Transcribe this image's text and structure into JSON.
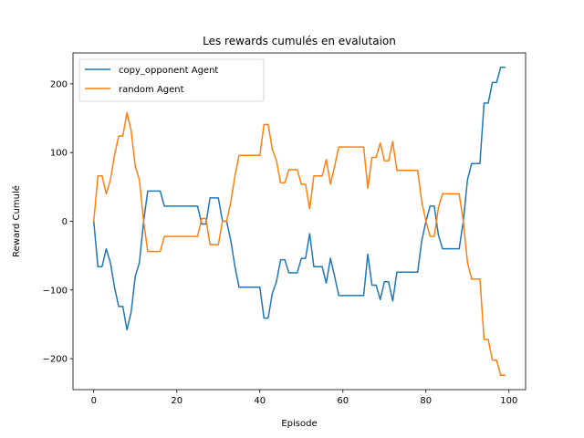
{
  "chart_data": {
    "type": "line",
    "title": "Les rewards cumulés en evalutaion",
    "xlabel": "Episode",
    "ylabel": "Reward Cumulé",
    "xlim": [
      -5,
      104
    ],
    "ylim": [
      -245,
      245
    ],
    "xticks": [
      0,
      20,
      40,
      60,
      80,
      100
    ],
    "yticks": [
      -200,
      -100,
      0,
      100,
      200
    ],
    "ytick_labels": [
      "−200",
      "−100",
      "0",
      "100",
      "200"
    ],
    "grid": false,
    "legend_position": "upper-left",
    "colors": {
      "copy": "#1f77b4",
      "random": "#ff7f0e"
    },
    "series": [
      {
        "name": "copy_opponent Agent",
        "x": [
          0,
          1,
          2,
          3,
          4,
          5,
          6,
          7,
          8,
          9,
          10,
          11,
          12,
          13,
          14,
          15,
          16,
          17,
          18,
          19,
          20,
          21,
          22,
          23,
          24,
          25,
          26,
          27,
          28,
          29,
          30,
          31,
          32,
          33,
          34,
          35,
          36,
          37,
          38,
          39,
          40,
          41,
          42,
          43,
          44,
          45,
          46,
          47,
          48,
          49,
          50,
          51,
          52,
          53,
          54,
          55,
          56,
          57,
          58,
          59,
          60,
          61,
          62,
          63,
          64,
          65,
          66,
          67,
          68,
          69,
          70,
          71,
          72,
          73,
          74,
          75,
          76,
          77,
          78,
          79,
          80,
          81,
          82,
          83,
          84,
          85,
          86,
          87,
          88,
          89,
          90,
          91,
          92,
          93,
          94,
          95,
          96,
          97,
          98,
          99
        ],
        "y": [
          0,
          -66,
          -66,
          -40,
          -60,
          -96,
          -124,
          -124,
          -158,
          -132,
          -80,
          -60,
          0,
          44,
          44,
          44,
          44,
          22,
          22,
          22,
          22,
          22,
          22,
          22,
          22,
          22,
          -4,
          -4,
          34,
          34,
          34,
          0,
          0,
          -28,
          -66,
          -96,
          -96,
          -96,
          -96,
          -96,
          -96,
          -141,
          -141,
          -105,
          -88,
          -56,
          -56,
          -75,
          -75,
          -75,
          -54,
          -54,
          -18,
          -66,
          -66,
          -66,
          -90,
          -54,
          -80,
          -108,
          -108,
          -108,
          -108,
          -108,
          -108,
          -108,
          -48,
          -93,
          -93,
          -114,
          -88,
          -88,
          -116,
          -74,
          -74,
          -74,
          -74,
          -74,
          -74,
          -28,
          0,
          22,
          22,
          -20,
          -40,
          -40,
          -40,
          -40,
          -40,
          0,
          60,
          84,
          84,
          84,
          172,
          172,
          202,
          202,
          224,
          224
        ]
      },
      {
        "name": "random Agent",
        "x": [
          0,
          1,
          2,
          3,
          4,
          5,
          6,
          7,
          8,
          9,
          10,
          11,
          12,
          13,
          14,
          15,
          16,
          17,
          18,
          19,
          20,
          21,
          22,
          23,
          24,
          25,
          26,
          27,
          28,
          29,
          30,
          31,
          32,
          33,
          34,
          35,
          36,
          37,
          38,
          39,
          40,
          41,
          42,
          43,
          44,
          45,
          46,
          47,
          48,
          49,
          50,
          51,
          52,
          53,
          54,
          55,
          56,
          57,
          58,
          59,
          60,
          61,
          62,
          63,
          64,
          65,
          66,
          67,
          68,
          69,
          70,
          71,
          72,
          73,
          74,
          75,
          76,
          77,
          78,
          79,
          80,
          81,
          82,
          83,
          84,
          85,
          86,
          87,
          88,
          89,
          90,
          91,
          92,
          93,
          94,
          95,
          96,
          97,
          98,
          99
        ],
        "y": [
          0,
          66,
          66,
          40,
          60,
          96,
          124,
          124,
          158,
          132,
          80,
          60,
          0,
          -44,
          -44,
          -44,
          -44,
          -22,
          -22,
          -22,
          -22,
          -22,
          -22,
          -22,
          -22,
          -22,
          4,
          4,
          -34,
          -34,
          -34,
          0,
          0,
          28,
          66,
          96,
          96,
          96,
          96,
          96,
          96,
          141,
          141,
          105,
          88,
          56,
          56,
          75,
          75,
          75,
          54,
          54,
          18,
          66,
          66,
          66,
          90,
          54,
          80,
          108,
          108,
          108,
          108,
          108,
          108,
          108,
          48,
          93,
          93,
          114,
          88,
          88,
          116,
          74,
          74,
          74,
          74,
          74,
          74,
          28,
          0,
          -22,
          -22,
          20,
          40,
          40,
          40,
          40,
          40,
          0,
          -60,
          -84,
          -84,
          -84,
          -172,
          -172,
          -202,
          -202,
          -224,
          -224
        ]
      }
    ]
  }
}
